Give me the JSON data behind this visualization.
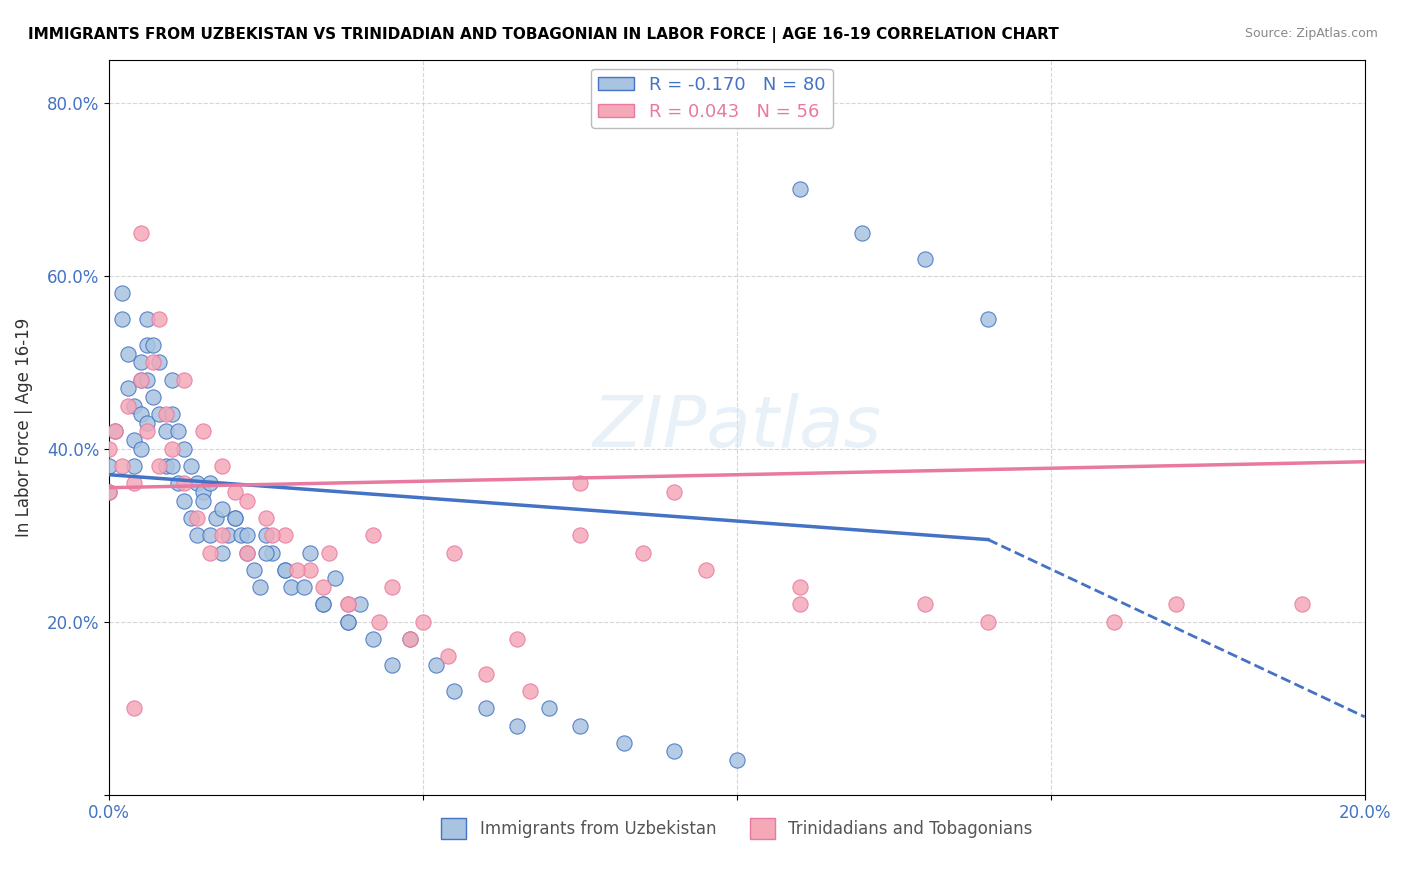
{
  "title": "IMMIGRANTS FROM UZBEKISTAN VS TRINIDADIAN AND TOBAGONIAN IN LABOR FORCE | AGE 16-19 CORRELATION CHART",
  "source": "Source: ZipAtlas.com",
  "ylabel": "In Labor Force | Age 16-19",
  "xlim": [
    0.0,
    0.2
  ],
  "ylim": [
    0.0,
    0.85
  ],
  "legend_R1": "-0.170",
  "legend_N1": "80",
  "legend_R2": "0.043",
  "legend_N2": "56",
  "color_uzbekistan": "#a8c4e0",
  "color_trinidad": "#f4a8b8",
  "color_uzbekistan_line": "#4472c4",
  "color_trinidad_line": "#e879a0",
  "uzbekistan_x": [
    0.0,
    0.0,
    0.001,
    0.002,
    0.002,
    0.003,
    0.003,
    0.004,
    0.004,
    0.004,
    0.005,
    0.005,
    0.005,
    0.005,
    0.006,
    0.006,
    0.006,
    0.006,
    0.007,
    0.007,
    0.008,
    0.008,
    0.009,
    0.009,
    0.01,
    0.01,
    0.01,
    0.011,
    0.011,
    0.012,
    0.012,
    0.013,
    0.013,
    0.014,
    0.014,
    0.015,
    0.016,
    0.017,
    0.018,
    0.019,
    0.02,
    0.021,
    0.022,
    0.023,
    0.024,
    0.025,
    0.026,
    0.028,
    0.029,
    0.032,
    0.034,
    0.036,
    0.038,
    0.04,
    0.042,
    0.045,
    0.048,
    0.052,
    0.055,
    0.06,
    0.065,
    0.07,
    0.075,
    0.082,
    0.09,
    0.1,
    0.11,
    0.12,
    0.13,
    0.14,
    0.015,
    0.016,
    0.018,
    0.02,
    0.022,
    0.025,
    0.028,
    0.031,
    0.034,
    0.038
  ],
  "uzbekistan_y": [
    0.35,
    0.38,
    0.42,
    0.55,
    0.58,
    0.51,
    0.47,
    0.45,
    0.41,
    0.38,
    0.5,
    0.48,
    0.44,
    0.4,
    0.55,
    0.52,
    0.48,
    0.43,
    0.52,
    0.46,
    0.5,
    0.44,
    0.42,
    0.38,
    0.48,
    0.44,
    0.38,
    0.42,
    0.36,
    0.4,
    0.34,
    0.38,
    0.32,
    0.36,
    0.3,
    0.35,
    0.3,
    0.32,
    0.28,
    0.3,
    0.32,
    0.3,
    0.28,
    0.26,
    0.24,
    0.3,
    0.28,
    0.26,
    0.24,
    0.28,
    0.22,
    0.25,
    0.2,
    0.22,
    0.18,
    0.15,
    0.18,
    0.15,
    0.12,
    0.1,
    0.08,
    0.1,
    0.08,
    0.06,
    0.05,
    0.04,
    0.7,
    0.65,
    0.62,
    0.55,
    0.34,
    0.36,
    0.33,
    0.32,
    0.3,
    0.28,
    0.26,
    0.24,
    0.22,
    0.2
  ],
  "trinidad_x": [
    0.0,
    0.0,
    0.001,
    0.002,
    0.003,
    0.004,
    0.005,
    0.006,
    0.007,
    0.008,
    0.009,
    0.01,
    0.012,
    0.014,
    0.016,
    0.018,
    0.02,
    0.022,
    0.025,
    0.028,
    0.032,
    0.035,
    0.038,
    0.042,
    0.045,
    0.05,
    0.055,
    0.065,
    0.075,
    0.09,
    0.11,
    0.14,
    0.17,
    0.005,
    0.008,
    0.012,
    0.015,
    0.018,
    0.022,
    0.026,
    0.03,
    0.034,
    0.038,
    0.043,
    0.048,
    0.054,
    0.06,
    0.067,
    0.075,
    0.085,
    0.095,
    0.11,
    0.13,
    0.16,
    0.19,
    0.004
  ],
  "trinidad_y": [
    0.35,
    0.4,
    0.42,
    0.38,
    0.45,
    0.36,
    0.48,
    0.42,
    0.5,
    0.38,
    0.44,
    0.4,
    0.36,
    0.32,
    0.28,
    0.3,
    0.35,
    0.28,
    0.32,
    0.3,
    0.26,
    0.28,
    0.22,
    0.3,
    0.24,
    0.2,
    0.28,
    0.18,
    0.36,
    0.35,
    0.22,
    0.2,
    0.22,
    0.65,
    0.55,
    0.48,
    0.42,
    0.38,
    0.34,
    0.3,
    0.26,
    0.24,
    0.22,
    0.2,
    0.18,
    0.16,
    0.14,
    0.12,
    0.3,
    0.28,
    0.26,
    0.24,
    0.22,
    0.2,
    0.22,
    0.1
  ]
}
